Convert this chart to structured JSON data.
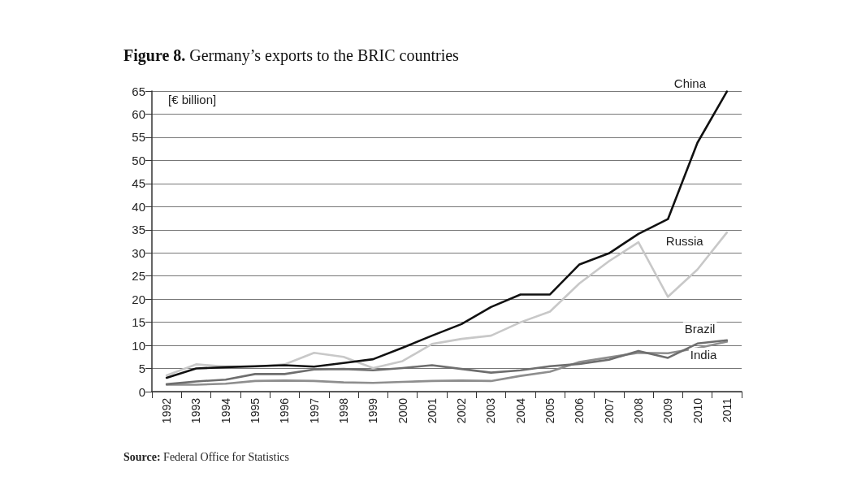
{
  "chart_data": {
    "type": "line",
    "title": "Figure 8. Germany’s exports to the BRIC countries",
    "ylabel": "[€ billion]",
    "annotations": [
      "Source: Federal Office for Statistics"
    ],
    "categories": [
      "1992",
      "1993",
      "1994",
      "1995",
      "1996",
      "1997",
      "1998",
      "1999",
      "2000",
      "2001",
      "2002",
      "2003",
      "2004",
      "2005",
      "2006",
      "2007",
      "2008",
      "2009",
      "2010",
      "2011"
    ],
    "series": [
      {
        "name": "China",
        "color": "#111111",
        "values": [
          3,
          5,
          5.3,
          5.5,
          5.7,
          5.4,
          6.2,
          7,
          9.5,
          12.1,
          14.6,
          18.3,
          21,
          21,
          27.5,
          29.9,
          34.1,
          37.3,
          53.8,
          64.9
        ]
      },
      {
        "name": "Russia",
        "color": "#c8c8c8",
        "values": [
          3.5,
          5.9,
          5.4,
          5.4,
          5.9,
          8.4,
          7.5,
          5.1,
          6.6,
          10.3,
          11.4,
          12.1,
          15,
          17.3,
          23.4,
          28.2,
          32.3,
          20.5,
          26.4,
          34.4
        ]
      },
      {
        "name": "Brazil",
        "color": "#6e6e6e",
        "values": [
          1.6,
          2.2,
          2.6,
          3.8,
          3.8,
          4.8,
          4.9,
          4.6,
          5.1,
          5.7,
          4.9,
          4.1,
          4.6,
          5.5,
          6,
          6.9,
          8.8,
          7.3,
          10.4,
          11.1
        ]
      },
      {
        "name": "India",
        "color": "#8e8e8e",
        "values": [
          1.5,
          1.5,
          1.7,
          2.3,
          2.4,
          2.3,
          2,
          1.9,
          2.1,
          2.3,
          2.4,
          2.3,
          3.4,
          4.3,
          6.4,
          7.4,
          8.4,
          8.3,
          9.4,
          10.8
        ]
      }
    ],
    "ylim": [
      0,
      65
    ],
    "yticks": [
      0,
      5,
      10,
      15,
      20,
      25,
      30,
      35,
      40,
      45,
      50,
      55,
      60,
      65
    ],
    "grid": "y",
    "legend": false,
    "marker": "none",
    "line_style": "solid"
  }
}
